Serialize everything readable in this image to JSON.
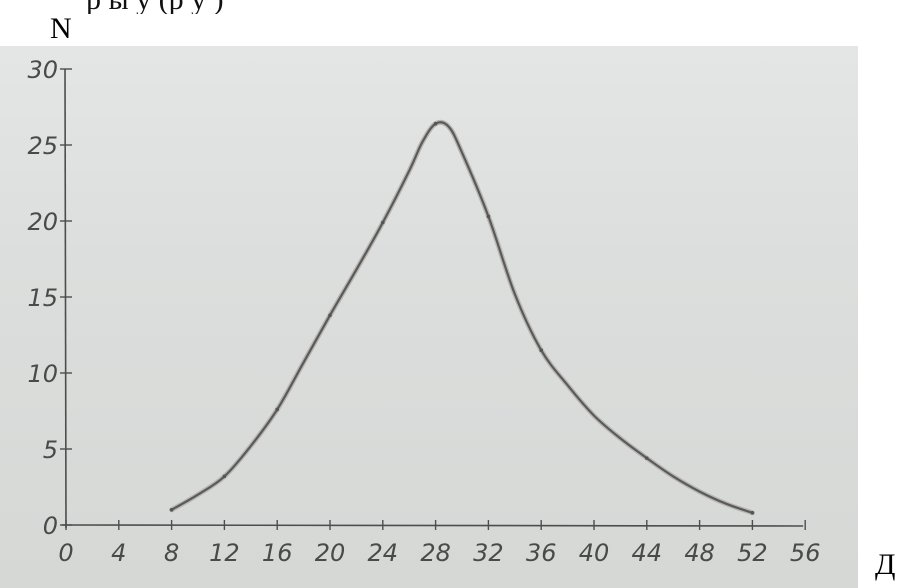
{
  "header": {
    "top_text": "р ы      у              (р у       )"
  },
  "chart_data": {
    "type": "line",
    "title": "",
    "xlabel": "Д",
    "ylabel": "N",
    "xlim": [
      0,
      56
    ],
    "ylim": [
      0,
      30
    ],
    "x_ticks": [
      "0",
      "4",
      "8",
      "12",
      "16",
      "20",
      "24",
      "28",
      "32",
      "36",
      "40",
      "44",
      "48",
      "52",
      "56"
    ],
    "y_ticks": [
      "0",
      "5",
      "10",
      "15",
      "20",
      "25",
      "30"
    ],
    "grid": false,
    "series": [
      {
        "x": [
          8,
          10,
          12,
          14,
          16,
          18,
          20,
          22,
          24,
          26,
          27,
          28,
          29,
          30,
          32,
          34,
          36,
          38,
          40,
          42,
          44,
          46,
          48,
          50,
          52
        ],
        "y": [
          1,
          2,
          3.2,
          5.2,
          7.6,
          10.7,
          13.8,
          16.8,
          19.9,
          23.3,
          25.2,
          26.4,
          26.2,
          24.5,
          20.3,
          15.2,
          11.5,
          9.2,
          7.2,
          5.7,
          4.4,
          3.2,
          2.2,
          1.4,
          0.8
        ],
        "color": "#5a5a5a"
      }
    ],
    "markers": [
      {
        "x": 8,
        "y": 1
      },
      {
        "x": 12,
        "y": 3.2
      },
      {
        "x": 16,
        "y": 7.6
      },
      {
        "x": 20,
        "y": 13.8
      },
      {
        "x": 24,
        "y": 19.9
      },
      {
        "x": 28,
        "y": 26.4
      },
      {
        "x": 32,
        "y": 20.3
      },
      {
        "x": 36,
        "y": 11.5
      },
      {
        "x": 44,
        "y": 4.4
      },
      {
        "x": 52,
        "y": 0.8
      }
    ]
  }
}
